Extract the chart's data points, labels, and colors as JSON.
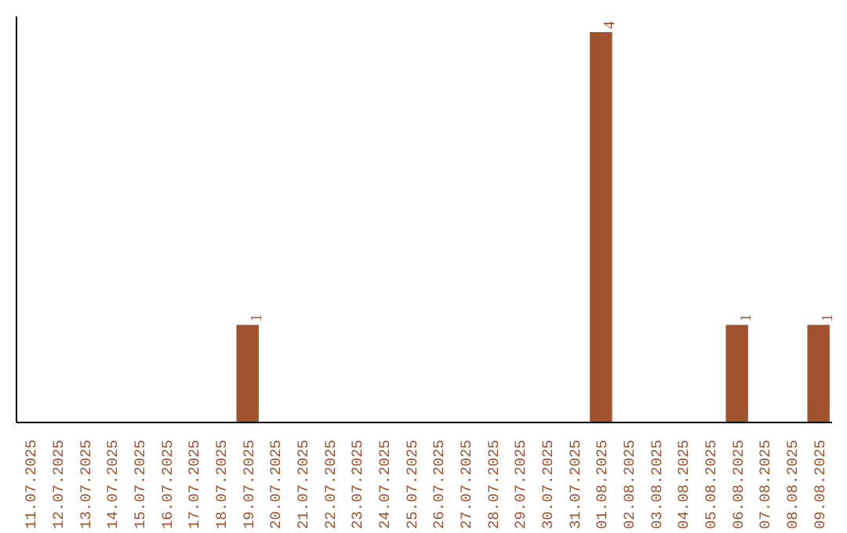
{
  "chart_data": {
    "type": "bar",
    "categories": [
      "11.07.2025",
      "12.07.2025",
      "13.07.2025",
      "14.07.2025",
      "15.07.2025",
      "16.07.2025",
      "17.07.2025",
      "18.07.2025",
      "19.07.2025",
      "20.07.2025",
      "21.07.2025",
      "22.07.2025",
      "23.07.2025",
      "24.07.2025",
      "25.07.2025",
      "26.07.2025",
      "27.07.2025",
      "28.07.2025",
      "29.07.2025",
      "30.07.2025",
      "31.07.2025",
      "01.08.2025",
      "02.08.2025",
      "03.08.2025",
      "04.08.2025",
      "05.08.2025",
      "06.08.2025",
      "07.08.2025",
      "08.08.2025",
      "09.08.2025"
    ],
    "values": [
      0,
      0,
      0,
      0,
      0,
      0,
      0,
      0,
      1,
      0,
      0,
      0,
      0,
      0,
      0,
      0,
      0,
      0,
      0,
      0,
      0,
      4,
      0,
      0,
      0,
      0,
      1,
      0,
      0,
      1
    ],
    "value_labels": [
      null,
      null,
      null,
      null,
      null,
      null,
      null,
      null,
      "1",
      null,
      null,
      null,
      null,
      null,
      null,
      null,
      null,
      null,
      null,
      null,
      null,
      "4",
      null,
      null,
      null,
      null,
      "1",
      null,
      null,
      "1"
    ],
    "color": "#a0522d",
    "grid": false
  }
}
